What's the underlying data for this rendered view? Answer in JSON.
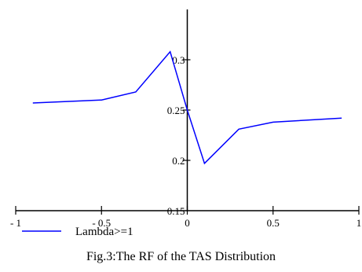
{
  "chart_data": {
    "type": "line",
    "xlim": [
      -1,
      1
    ],
    "ylim": [
      0.15,
      0.35
    ],
    "x_ticks": [
      -1,
      -0.5,
      0,
      0.5,
      1
    ],
    "x_tick_labels": [
      "- 1",
      "- 0.5",
      "0",
      "0.5",
      "1"
    ],
    "y_ticks": [
      0.15,
      0.2,
      0.25,
      0.3
    ],
    "y_tick_labels": [
      "0.15",
      "0.2",
      "0.25",
      "0.3"
    ],
    "series": [
      {
        "name": "Lambda>=1",
        "color": "#0000ff",
        "x": [
          -0.9,
          -0.5,
          -0.3,
          -0.1,
          0,
          0.1,
          0.3,
          0.5,
          0.9
        ],
        "y": [
          0.257,
          0.26,
          0.268,
          0.308,
          0.25,
          0.197,
          0.231,
          0.238,
          0.242
        ]
      }
    ],
    "legend": "bottom-left",
    "grid": false,
    "caption": "Fig.3:The RF  of the TAS Distribution"
  }
}
